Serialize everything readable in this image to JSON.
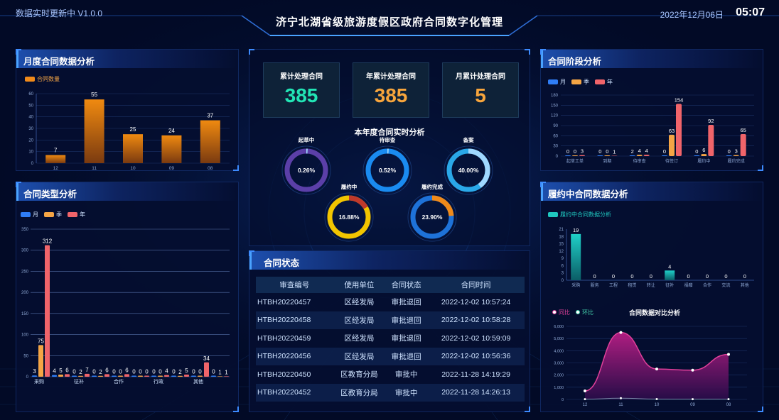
{
  "header": {
    "status": "数据实时更新中 V1.0.0",
    "title": "济宁北湖省级旅游度假区政府合同数字化管理",
    "date": "2022年12月06日",
    "time": "05:07"
  },
  "colors": {
    "blue": "#2f7df6",
    "orange": "#f5a545",
    "red": "#f0646a",
    "teal": "#1fc7c0",
    "stat_green": "#22e5b5",
    "stat_orange": "#f7a53c"
  },
  "monthly": {
    "title": "月度合同数据分析",
    "legend": "合同数量",
    "chart_data": {
      "type": "bar",
      "categories": [
        "12",
        "11",
        "10",
        "09",
        "08"
      ],
      "values": [
        7,
        55,
        25,
        24,
        37
      ],
      "ylim": [
        0,
        60
      ],
      "yticks": [
        0,
        10,
        20,
        30,
        40,
        50,
        60
      ]
    }
  },
  "type_analysis": {
    "title": "合同类型分析",
    "legend": [
      "月",
      "季",
      "年"
    ],
    "chart_data": {
      "type": "bar",
      "ylim": [
        0,
        350
      ],
      "yticks": [
        0,
        50,
        100,
        150,
        200,
        250,
        300,
        350
      ],
      "xlabels": [
        "采购",
        "征补",
        "合作",
        "行政",
        "其他"
      ],
      "groups": [
        [
          3,
          75,
          312
        ],
        [
          4,
          5,
          6
        ],
        [
          0,
          2,
          7
        ],
        [
          0,
          2,
          6
        ],
        [
          0,
          0,
          6
        ],
        [
          0,
          0,
          0
        ],
        [
          0,
          0,
          4
        ],
        [
          0,
          2,
          5
        ],
        [
          0,
          0,
          34
        ],
        [
          0,
          1,
          1
        ]
      ]
    }
  },
  "stats": {
    "total_label": "累计处理合同",
    "total_value": "385",
    "year_label": "年累计处理合同",
    "year_value": "385",
    "month_label": "月累计处理合同",
    "month_value": "5"
  },
  "realtime": {
    "title": "本年度合同实时分析",
    "rings": [
      {
        "label": "起草中",
        "value": "0.26%",
        "pct": 0.0026,
        "color": "#5b3fa8"
      },
      {
        "label": "待审查",
        "value": "0.52%",
        "pct": 0.0052,
        "color": "#1a8bf0"
      },
      {
        "label": "备案",
        "value": "40.00%",
        "pct": 0.4,
        "color": "#2aa8e8"
      },
      {
        "label": "履约中",
        "value": "16.88%",
        "pct": 0.1688,
        "color": "#f2c500"
      },
      {
        "label": "履约完成",
        "value": "23.90%",
        "pct": 0.239,
        "color": "#1e72d8"
      }
    ]
  },
  "status_table": {
    "title": "合同状态",
    "headers": [
      "审查编号",
      "使用单位",
      "合同状态",
      "合同时间"
    ],
    "rows": [
      [
        "HTBH20220457",
        "区经发局",
        "审批退回",
        "2022-12-02 10:57:24"
      ],
      [
        "HTBH20220458",
        "区经发局",
        "审批退回",
        "2022-12-02 10:58:28"
      ],
      [
        "HTBH20220459",
        "区经发局",
        "审批退回",
        "2022-12-02 10:59:09"
      ],
      [
        "HTBH20220456",
        "区经发局",
        "审批退回",
        "2022-12-02 10:56:36"
      ],
      [
        "HTBH20220450",
        "区教育分局",
        "审批中",
        "2022-11-28 14:19:29"
      ],
      [
        "HTBH20220452",
        "区教育分局",
        "审批中",
        "2022-11-28 14:26:13"
      ]
    ]
  },
  "stage": {
    "title": "合同阶段分析",
    "legend": [
      "月",
      "季",
      "年"
    ],
    "chart_data": {
      "type": "bar",
      "ylim": [
        0,
        180
      ],
      "yticks": [
        0,
        30,
        60,
        90,
        120,
        150,
        180
      ],
      "categories": [
        "起草工单",
        "到期",
        "待审查",
        "待签订",
        "履约中",
        "履约完成"
      ],
      "groups": [
        [
          0,
          0,
          3
        ],
        [
          0,
          0,
          1
        ],
        [
          2,
          4,
          4
        ],
        [
          0,
          63,
          154
        ],
        [
          0,
          6,
          92
        ],
        [
          0,
          3,
          65
        ]
      ]
    }
  },
  "performing": {
    "title": "履约中合同数据分析",
    "legend": "履约中合同数据分析",
    "chart_data": {
      "type": "bar",
      "ylim": [
        0,
        21
      ],
      "yticks": [
        0,
        3,
        6,
        9,
        12,
        15,
        18,
        21
      ],
      "categories": [
        "采购",
        "服务",
        "工程",
        "租赁",
        "转让",
        "征补",
        "捐赠",
        "合作",
        "交流",
        "其他"
      ],
      "values": [
        19,
        0,
        0,
        0,
        0,
        4,
        0,
        0,
        0,
        0
      ]
    }
  },
  "compare": {
    "title": "合同数据对比分析",
    "legend": [
      "同比",
      "环比"
    ],
    "chart_data": {
      "type": "area",
      "categories": [
        "12",
        "11",
        "10",
        "09",
        "08"
      ],
      "ylim": [
        0,
        6000
      ],
      "yticks": [
        "0",
        "1,000",
        "2,000",
        "3,000",
        "4,000",
        "5,000",
        "6,000"
      ],
      "series": [
        {
          "name": "同比",
          "values": [
            700,
            5500,
            2500,
            2400,
            3700
          ]
        },
        {
          "name": "环比",
          "values": [
            20,
            100,
            30,
            20,
            25
          ]
        }
      ]
    }
  }
}
